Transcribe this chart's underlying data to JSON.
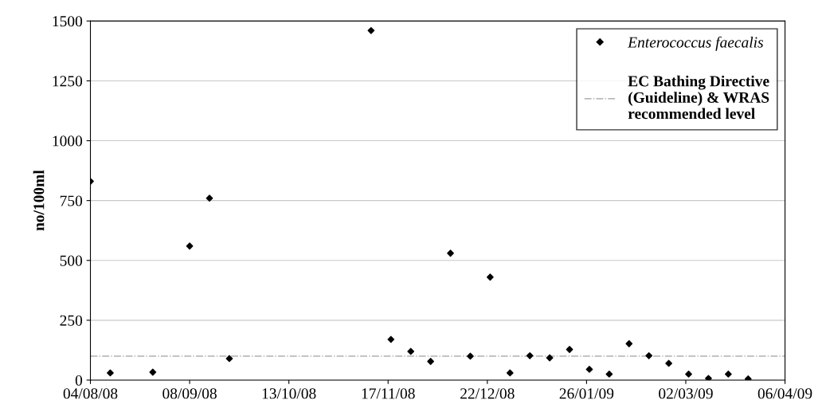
{
  "chart_data": {
    "type": "scatter",
    "ylabel": "no/100ml",
    "x": [
      "2008-08-04",
      "2008-08-11",
      "2008-08-26",
      "2008-09-08",
      "2008-09-15",
      "2008-09-22",
      "2008-11-11",
      "2008-11-18",
      "2008-11-25",
      "2008-12-02",
      "2008-12-09",
      "2008-12-16",
      "2008-12-23",
      "2008-12-30",
      "2009-01-06",
      "2009-01-13",
      "2009-01-20",
      "2009-01-27",
      "2009-02-03",
      "2009-02-10",
      "2009-02-17",
      "2009-02-24",
      "2009-03-03",
      "2009-03-10",
      "2009-03-17",
      "2009-03-24"
    ],
    "series": [
      {
        "name": "Enterococcus faecalis",
        "color": "#000000",
        "values": [
          830,
          30,
          33,
          560,
          760,
          90,
          1460,
          170,
          120,
          78,
          530,
          100,
          430,
          30,
          102,
          93,
          128,
          45,
          25,
          152,
          102,
          70,
          25,
          7,
          25,
          5
        ]
      }
    ],
    "marker": "diamond",
    "xlim": [
      "2008-08-04",
      "2009-04-06"
    ],
    "xticks": [
      {
        "value": "2008-08-04",
        "label": "04/08/08"
      },
      {
        "value": "2008-09-08",
        "label": "08/09/08"
      },
      {
        "value": "2008-10-13",
        "label": "13/10/08"
      },
      {
        "value": "2008-11-17",
        "label": "17/11/08"
      },
      {
        "value": "2008-12-22",
        "label": "22/12/08"
      },
      {
        "value": "2009-01-26",
        "label": "26/01/09"
      },
      {
        "value": "2009-03-02",
        "label": "02/03/09"
      },
      {
        "value": "2009-04-06",
        "label": "06/04/09"
      }
    ],
    "ylim": [
      0,
      1500
    ],
    "yticks": [
      0,
      250,
      500,
      750,
      1000,
      1250,
      1500
    ],
    "grid": "y",
    "legend": "top right",
    "ref_lines": [
      {
        "axis": "y",
        "value": 100,
        "label": "EC Bathing Directive\n(Guideline) & WRAS\nrecommended level",
        "color": "#a0a0a0",
        "line_style": "dashdot"
      }
    ]
  }
}
